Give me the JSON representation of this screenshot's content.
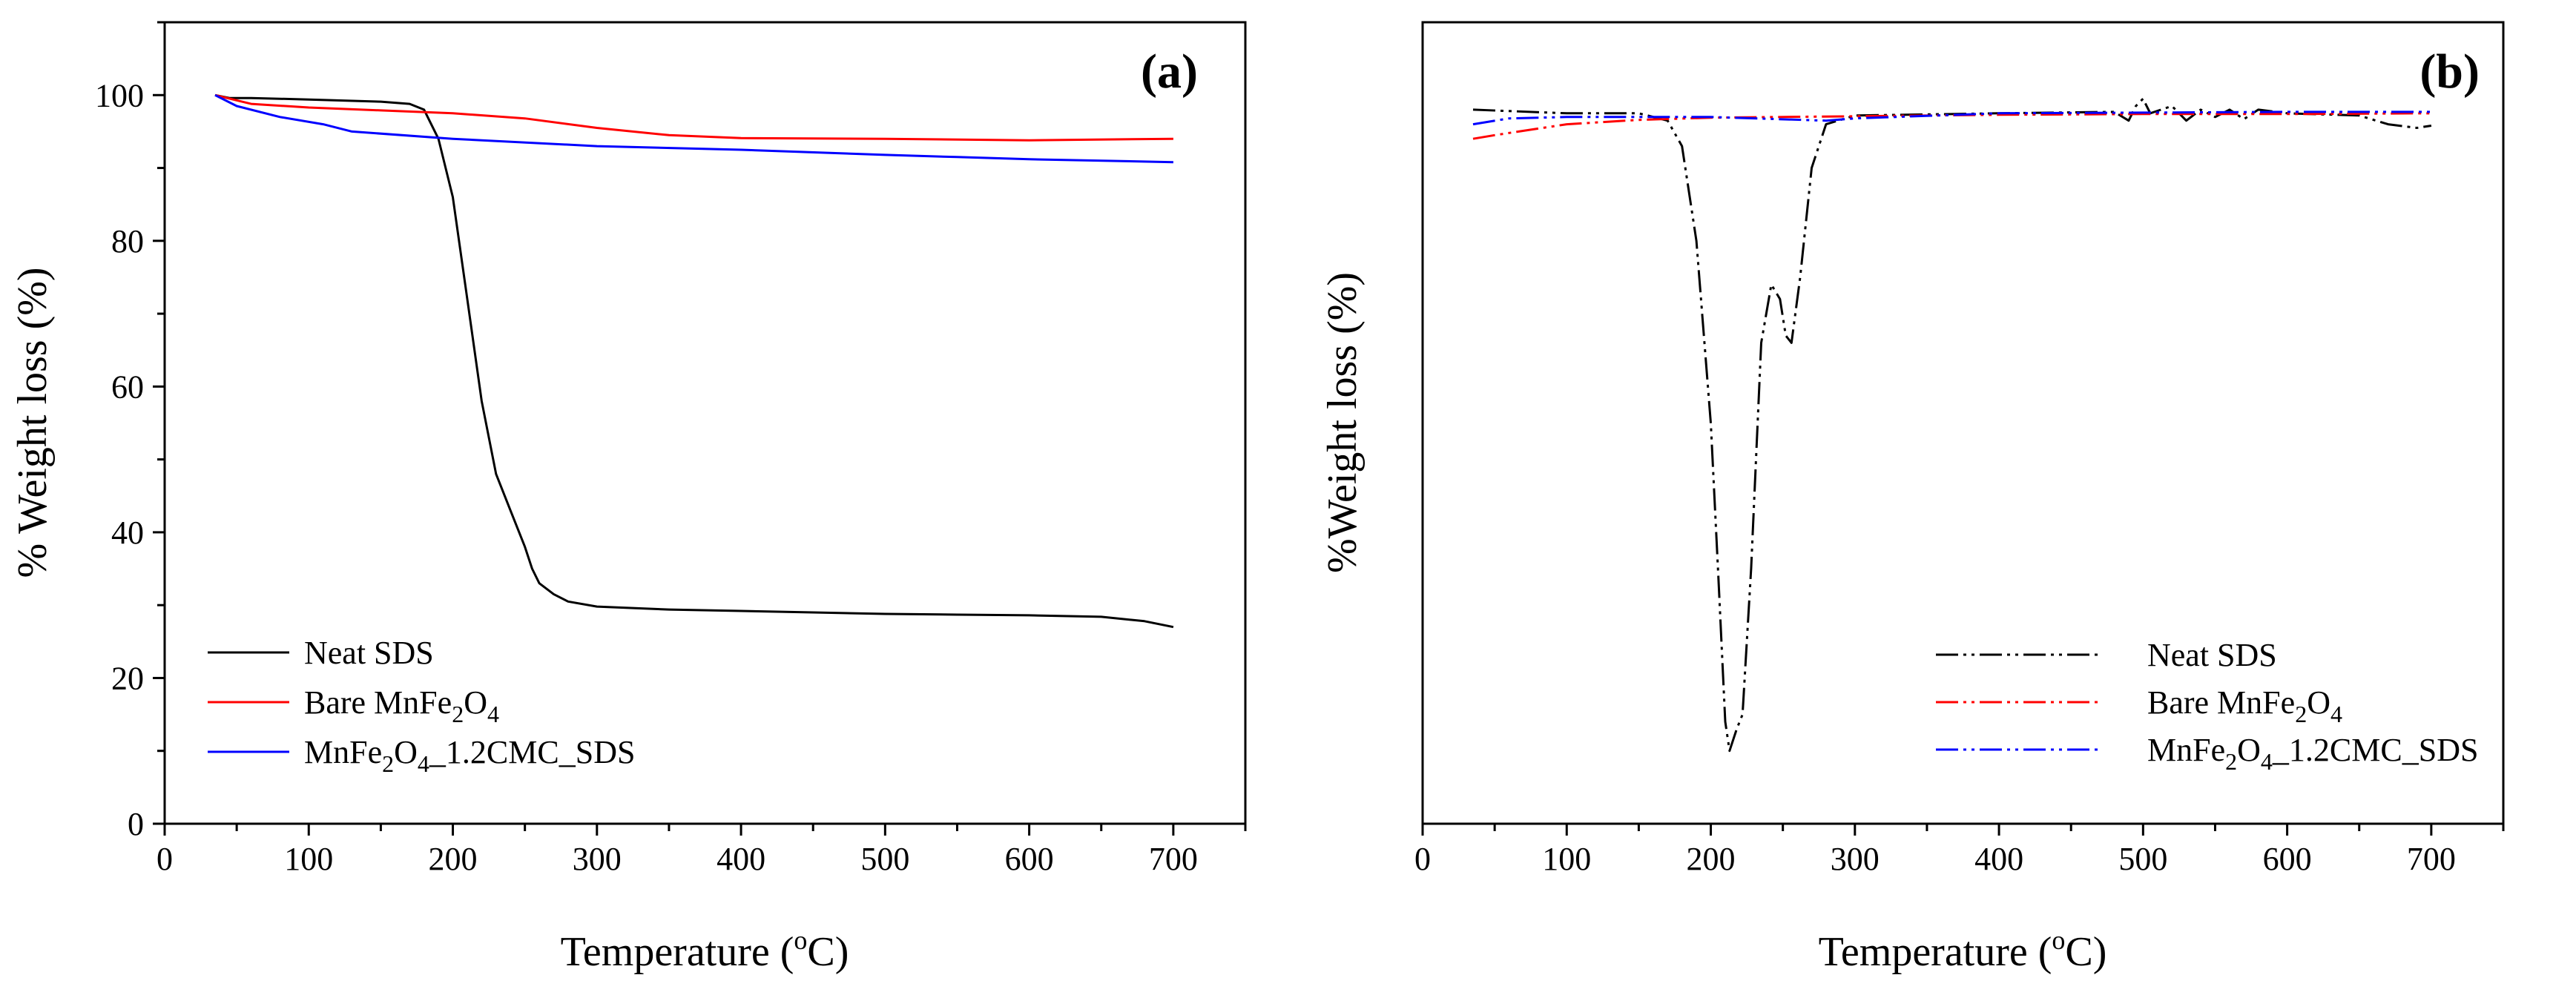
{
  "chart_data": [
    {
      "type": "line",
      "panel_label": "(a)",
      "xlabel": "Temperature (",
      "xlabel_super": "o",
      "xlabel_tail": "C)",
      "ylabel": "% Weight loss (%)",
      "xlim": [
        0,
        750
      ],
      "ylim": [
        0,
        110
      ],
      "xticks": [
        "0",
        "100",
        "200",
        "300",
        "400",
        "500",
        "600",
        "700"
      ],
      "xtick_values": [
        0,
        100,
        200,
        300,
        400,
        500,
        600,
        700
      ],
      "yticks": [
        "0",
        "20",
        "40",
        "60",
        "80",
        "100"
      ],
      "ytick_values": [
        0,
        20,
        40,
        60,
        80,
        100
      ],
      "legend_position": "bottom-left",
      "series": [
        {
          "name": "Neat SDS",
          "legend_parts": [
            [
              "Neat SDS",
              "n"
            ]
          ],
          "color": "#000000",
          "dash": "solid",
          "points": [
            [
              35,
              100
            ],
            [
              45,
              99.6
            ],
            [
              60,
              99.6
            ],
            [
              100,
              99.4
            ],
            [
              150,
              99.1
            ],
            [
              170,
              98.8
            ],
            [
              180,
              98
            ],
            [
              190,
              94
            ],
            [
              200,
              86
            ],
            [
              210,
              72
            ],
            [
              220,
              58
            ],
            [
              230,
              48
            ],
            [
              240,
              43
            ],
            [
              250,
              38
            ],
            [
              255,
              35
            ],
            [
              260,
              33
            ],
            [
              270,
              31.5
            ],
            [
              280,
              30.5
            ],
            [
              300,
              29.8
            ],
            [
              350,
              29.4
            ],
            [
              400,
              29.2
            ],
            [
              450,
              29
            ],
            [
              500,
              28.8
            ],
            [
              550,
              28.7
            ],
            [
              600,
              28.6
            ],
            [
              650,
              28.4
            ],
            [
              680,
              27.8
            ],
            [
              700,
              27
            ]
          ]
        },
        {
          "name": "Bare MnFe2O4",
          "legend_parts": [
            [
              "Bare MnFe",
              "n"
            ],
            [
              "2",
              "sub"
            ],
            [
              "O",
              "n"
            ],
            [
              "4",
              "sub"
            ]
          ],
          "color": "#ff0000",
          "dash": "solid",
          "points": [
            [
              35,
              100
            ],
            [
              60,
              98.8
            ],
            [
              100,
              98.3
            ],
            [
              150,
              97.9
            ],
            [
              200,
              97.5
            ],
            [
              250,
              96.8
            ],
            [
              300,
              95.5
            ],
            [
              350,
              94.5
            ],
            [
              400,
              94.1
            ],
            [
              500,
              94
            ],
            [
              600,
              93.8
            ],
            [
              700,
              94
            ]
          ]
        },
        {
          "name": "MnFe2O4_1.2CMC_SDS",
          "legend_parts": [
            [
              "MnFe",
              "n"
            ],
            [
              "2",
              "sub"
            ],
            [
              "O",
              "n"
            ],
            [
              "4",
              "sub"
            ],
            [
              "_1.2CMC_SDS",
              "n"
            ]
          ],
          "color": "#0000ff",
          "dash": "solid",
          "points": [
            [
              35,
              100
            ],
            [
              50,
              98.5
            ],
            [
              80,
              97
            ],
            [
              110,
              96
            ],
            [
              130,
              95
            ],
            [
              200,
              94
            ],
            [
              300,
              93
            ],
            [
              400,
              92.5
            ],
            [
              500,
              91.8
            ],
            [
              550,
              91.5
            ],
            [
              600,
              91.2
            ],
            [
              700,
              90.8
            ]
          ]
        }
      ]
    },
    {
      "type": "line",
      "panel_label": "(b)",
      "xlabel": "Temperature (",
      "xlabel_super": "o",
      "xlabel_tail": "C)",
      "ylabel": "%Weight loss (%)",
      "xlim": [
        0,
        750
      ],
      "ylim": [
        0,
        110
      ],
      "xticks": [
        "0",
        "100",
        "200",
        "300",
        "400",
        "500",
        "600",
        "700"
      ],
      "xtick_values": [
        0,
        100,
        200,
        300,
        400,
        500,
        600,
        700
      ],
      "yticks": [],
      "ytick_values": [],
      "legend_position": "bottom-right",
      "series": [
        {
          "name": "Neat SDS",
          "legend_parts": [
            [
              "Neat SDS",
              "n"
            ]
          ],
          "color": "#000000",
          "dash": "dashdotdot",
          "points": [
            [
              35,
              98
            ],
            [
              100,
              97.5
            ],
            [
              150,
              97.5
            ],
            [
              170,
              96.5
            ],
            [
              180,
              93
            ],
            [
              190,
              80
            ],
            [
              200,
              55
            ],
            [
              205,
              35
            ],
            [
              210,
              14
            ],
            [
              213,
              10
            ],
            [
              218,
              13
            ],
            [
              222,
              15
            ],
            [
              228,
              35
            ],
            [
              235,
              66
            ],
            [
              242,
              74
            ],
            [
              248,
              72
            ],
            [
              252,
              67
            ],
            [
              256,
              66
            ],
            [
              262,
              75
            ],
            [
              270,
              90
            ],
            [
              280,
              96
            ],
            [
              300,
              97.2
            ],
            [
              400,
              97.5
            ],
            [
              480,
              97.7
            ],
            [
              490,
              96.5
            ],
            [
              495,
              98.5
            ],
            [
              500,
              99.5
            ],
            [
              505,
              97.5
            ],
            [
              520,
              98.5
            ],
            [
              530,
              96.5
            ],
            [
              540,
              98
            ],
            [
              550,
              97
            ],
            [
              560,
              98
            ],
            [
              570,
              96.7
            ],
            [
              580,
              98
            ],
            [
              600,
              97.5
            ],
            [
              650,
              97.2
            ],
            [
              670,
              96
            ],
            [
              690,
              95.5
            ],
            [
              700,
              95.8
            ]
          ]
        },
        {
          "name": "Bare MnFe2O4",
          "legend_parts": [
            [
              "Bare MnFe",
              "n"
            ],
            [
              "2",
              "sub"
            ],
            [
              "O",
              "n"
            ],
            [
              "4",
              "sub"
            ]
          ],
          "color": "#ff0000",
          "dash": "dashdotdot",
          "points": [
            [
              35,
              94
            ],
            [
              50,
              94.5
            ],
            [
              100,
              96
            ],
            [
              150,
              96.6
            ],
            [
              200,
              96.9
            ],
            [
              300,
              97.1
            ],
            [
              400,
              97.3
            ],
            [
              500,
              97.4
            ],
            [
              600,
              97.4
            ],
            [
              700,
              97.5
            ]
          ]
        },
        {
          "name": "MnFe2O4_1.2CMC_SDS",
          "legend_parts": [
            [
              "MnFe",
              "n"
            ],
            [
              "2",
              "sub"
            ],
            [
              "O",
              "n"
            ],
            [
              "4",
              "sub"
            ],
            [
              "_1.2CMC_SDS",
              "n"
            ]
          ],
          "color": "#0000ff",
          "dash": "dashdotdot",
          "points": [
            [
              35,
              96
            ],
            [
              60,
              96.8
            ],
            [
              100,
              97
            ],
            [
              200,
              97
            ],
            [
              280,
              96.5
            ],
            [
              300,
              96.8
            ],
            [
              400,
              97.5
            ],
            [
              500,
              97.6
            ],
            [
              600,
              97.7
            ],
            [
              700,
              97.7
            ]
          ]
        }
      ]
    }
  ]
}
